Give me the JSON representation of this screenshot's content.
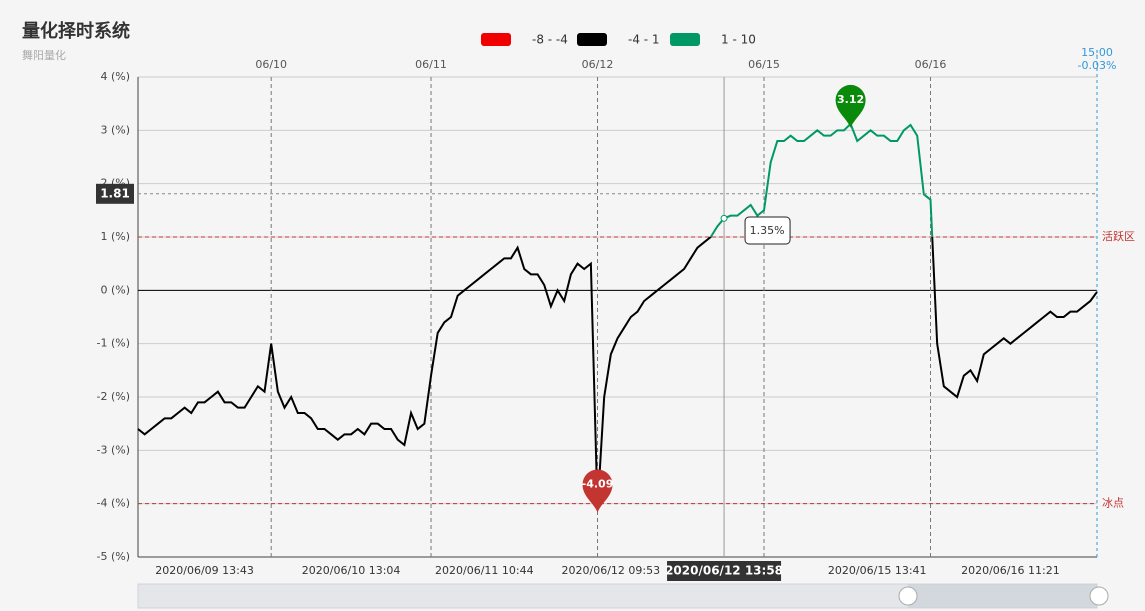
{
  "chart_data": {
    "type": "line",
    "title": "量化择时系统",
    "subtitle": "舞阳量化",
    "visual_map": [
      {
        "min": -8,
        "max": -4,
        "label": "-8 - -4",
        "color": "#f20000"
      },
      {
        "min": -4,
        "max": 1,
        "label": "-4 - 1",
        "color": "#000000"
      },
      {
        "min": 1,
        "max": 10,
        "label": "1 - 10",
        "color": "#009966"
      }
    ],
    "categories": [
      null,
      null,
      null,
      null,
      null,
      null,
      null,
      null,
      null,
      null,
      "2020/06/09 13:43",
      null,
      null,
      null,
      null,
      null,
      null,
      null,
      null,
      null,
      null,
      null,
      null,
      null,
      null,
      null,
      null,
      null,
      null,
      null,
      null,
      null,
      "2020/06/10 13:04",
      null,
      null,
      null,
      null,
      null,
      null,
      null,
      null,
      null,
      null,
      null,
      null,
      null,
      null,
      null,
      null,
      null,
      null,
      null,
      "2020/06/11 10:44",
      null,
      null,
      null,
      null,
      null,
      null,
      null,
      null,
      null,
      null,
      null,
      null,
      null,
      null,
      null,
      null,
      null,
      null,
      "2020/06/12 09:53",
      null,
      null,
      null,
      null,
      null,
      null,
      null,
      null,
      null,
      null,
      null,
      null,
      null,
      null,
      null,
      null,
      null,
      null,
      null,
      null,
      null,
      null,
      null,
      null,
      null,
      null,
      null,
      null,
      null,
      null,
      null,
      null,
      null,
      null,
      null,
      null,
      null,
      null,
      null,
      "2020/06/15 13:41",
      null,
      null,
      null,
      null,
      null,
      null,
      null,
      null,
      null,
      null,
      null,
      null,
      null,
      null,
      null,
      null,
      null,
      null,
      null,
      "2020/06/16 11:21",
      null,
      null,
      null,
      null,
      null,
      null,
      null,
      null,
      null,
      null,
      null,
      null,
      null
    ],
    "top_categories": [
      null,
      null,
      null,
      null,
      null,
      null,
      null,
      null,
      null,
      null,
      null,
      null,
      null,
      null,
      null,
      null,
      null,
      null,
      null,
      null,
      "06/10",
      null,
      null,
      null,
      null,
      null,
      null,
      null,
      null,
      null,
      null,
      null,
      null,
      null,
      null,
      null,
      null,
      null,
      null,
      null,
      null,
      null,
      null,
      null,
      "06/11",
      null,
      null,
      null,
      null,
      null,
      null,
      null,
      null,
      null,
      null,
      null,
      null,
      null,
      null,
      null,
      null,
      null,
      null,
      null,
      null,
      null,
      null,
      null,
      null,
      "06/12",
      null,
      null,
      null,
      null,
      null,
      null,
      null,
      null,
      null,
      null,
      null,
      null,
      null,
      null,
      null,
      null,
      null,
      null,
      null,
      null,
      null,
      null,
      null,
      null,
      "06/15",
      null,
      null,
      null,
      null,
      null,
      null,
      null,
      null,
      null,
      null,
      null,
      null,
      null,
      null,
      null,
      null,
      null,
      null,
      null,
      null,
      null,
      null,
      null,
      null,
      "06/16",
      null,
      null,
      null,
      null,
      null,
      null,
      null,
      null,
      null,
      null,
      null,
      null,
      null,
      null,
      null,
      null,
      null,
      null,
      null,
      null,
      null,
      null,
      null,
      null,
      null
    ],
    "series": [
      {
        "values": [
          -2.6,
          -2.7,
          -2.6,
          -2.5,
          -2.4,
          -2.4,
          -2.3,
          -2.2,
          -2.3,
          -2.1,
          -2.1,
          -2.0,
          -1.9,
          -2.1,
          -2.1,
          -2.2,
          -2.2,
          -2.0,
          -1.8,
          -1.9,
          -1.0,
          -1.9,
          -2.2,
          -2.0,
          -2.3,
          -2.3,
          -2.4,
          -2.6,
          -2.6,
          -2.7,
          -2.8,
          -2.7,
          -2.7,
          -2.6,
          -2.7,
          -2.5,
          -2.5,
          -2.6,
          -2.6,
          -2.8,
          -2.9,
          -2.3,
          -2.6,
          -2.5,
          -1.6,
          -0.8,
          -0.6,
          -0.5,
          -0.1,
          0.0,
          0.1,
          0.2,
          0.3,
          0.4,
          0.5,
          0.6,
          0.6,
          0.8,
          0.4,
          0.3,
          0.3,
          0.1,
          -0.3,
          0.0,
          -0.2,
          0.3,
          0.5,
          0.4,
          0.5,
          -4.09,
          -2.0,
          -1.2,
          -0.9,
          -0.7,
          -0.5,
          -0.4,
          -0.2,
          -0.1,
          0.0,
          0.1,
          0.2,
          0.3,
          0.4,
          0.6,
          0.8,
          0.9,
          1.0,
          1.2,
          1.35,
          1.4,
          1.4,
          1.5,
          1.6,
          1.4,
          1.5,
          2.4,
          2.8,
          2.8,
          2.9,
          2.8,
          2.8,
          2.9,
          3.0,
          2.9,
          2.9,
          3.0,
          3.0,
          3.12,
          2.8,
          2.9,
          3.0,
          2.9,
          2.9,
          2.8,
          2.8,
          3.0,
          3.1,
          2.9,
          1.8,
          1.7,
          -1.0,
          -1.8,
          -1.9,
          -2.0,
          -1.6,
          -1.5,
          -1.7,
          -1.2,
          -1.1,
          -1.0,
          -0.9,
          -1.0,
          -0.9,
          -0.8,
          -0.7,
          -0.6,
          -0.5,
          -0.4,
          -0.5,
          -0.5,
          -0.4,
          -0.4,
          -0.3,
          -0.2,
          -0.03
        ]
      }
    ],
    "ylim": [
      -5,
      4
    ],
    "yticks": [
      {
        "value": -5,
        "label": "-5 (%)"
      },
      {
        "value": -4,
        "label": "-4 (%)"
      },
      {
        "value": -3,
        "label": "-3 (%)"
      },
      {
        "value": -2,
        "label": "-2 (%)"
      },
      {
        "value": -1,
        "label": "-1 (%)"
      },
      {
        "value": 0,
        "label": "0 (%)"
      },
      {
        "value": 1,
        "label": "1 (%)"
      },
      {
        "value": 2,
        "label": "2 (%)"
      },
      {
        "value": 3,
        "label": "3 (%)"
      },
      {
        "value": 4,
        "label": "4 (%)"
      }
    ],
    "grid": true,
    "mark_lines": [
      {
        "value": 1,
        "label": "活跃区",
        "color": "#c23531"
      },
      {
        "value": -4,
        "label": "冰点",
        "color": "#c23531"
      }
    ],
    "mark_points": {
      "max_color": "#0a8a0a",
      "min_color": "#c23531"
    },
    "hover": {
      "x_label": "2020/06/12 13:58",
      "value": 1.35,
      "value_label": "1.35%",
      "pointer_value": 1.81
    },
    "end_label": {
      "time": "15:00",
      "value": -0.03,
      "value_label": "-0.03%",
      "color": "#3398db"
    }
  }
}
